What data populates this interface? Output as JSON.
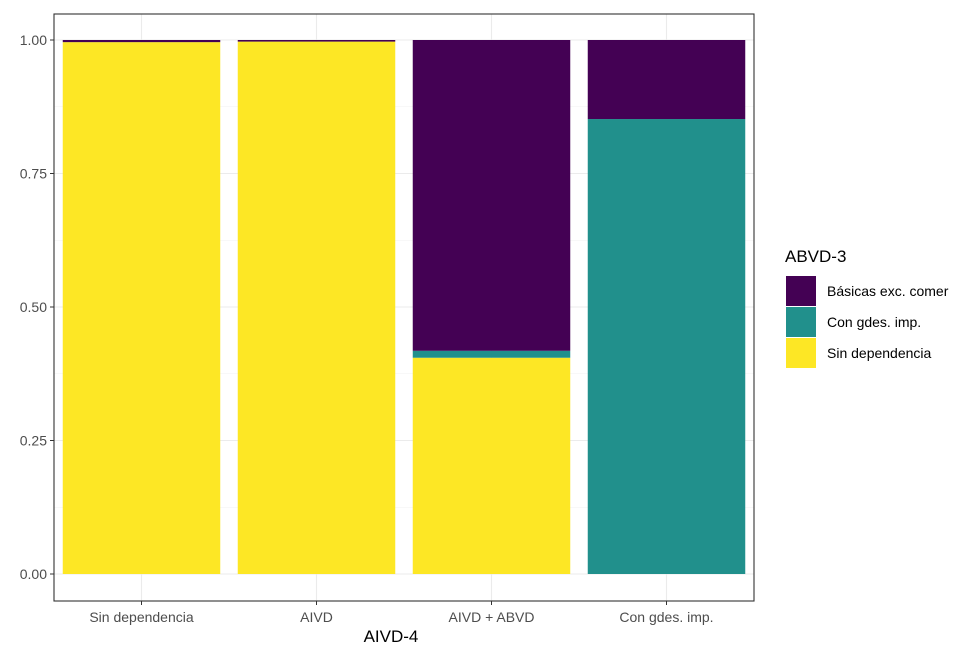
{
  "chart_data": {
    "type": "bar",
    "stacked": true,
    "normalized": true,
    "categories": [
      "Sin dependencia",
      "AIVD",
      "AIVD + ABVD",
      "Con gdes. imp."
    ],
    "series": [
      {
        "name": "Sin dependencia",
        "color": "#FDE725",
        "values": [
          0.996,
          0.997,
          0.405,
          0.0
        ]
      },
      {
        "name": "Con gdes. imp.",
        "color": "#21908C",
        "values": [
          0.0,
          0.0,
          0.013,
          0.852
        ]
      },
      {
        "name": "Básicas exc. comer",
        "color": "#440154",
        "values": [
          0.004,
          0.003,
          0.582,
          0.148
        ]
      }
    ],
    "xlabel": "AIVD-4",
    "ylabel": "",
    "ylim": [
      0,
      1
    ],
    "yticks": [
      "0.00",
      "0.25",
      "0.50",
      "0.75",
      "1.00"
    ],
    "legend": {
      "title": "ABVD-3",
      "position": "right",
      "order": [
        "Básicas exc. comer",
        "Con gdes. imp.",
        "Sin dependencia"
      ]
    },
    "grid": true
  }
}
